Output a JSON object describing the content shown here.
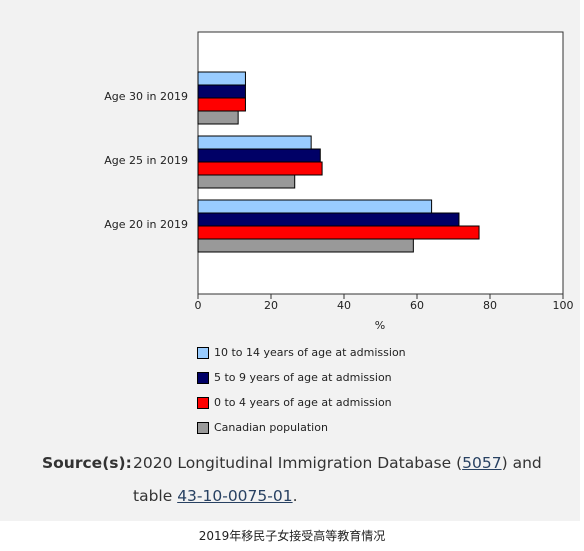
{
  "chart_data": {
    "type": "bar",
    "orientation": "horizontal",
    "categories": [
      "Age 30 in 2019",
      "Age 25 in 2019",
      "Age 20 in 2019"
    ],
    "series": [
      {
        "name": "10 to 14 years of age at admission",
        "color": "#99ccff",
        "values": [
          13,
          31,
          64
        ]
      },
      {
        "name": "5 to 9 years of age at admission",
        "color": "#000066",
        "values": [
          13,
          33.5,
          71.5
        ]
      },
      {
        "name": "0 to 4 years of age at admission",
        "color": "#ff0000",
        "values": [
          13,
          34,
          77
        ]
      },
      {
        "name": "Canadian population",
        "color": "#999999",
        "values": [
          11,
          26.5,
          59
        ]
      }
    ],
    "xlabel": "%",
    "xlim": [
      0,
      100
    ],
    "xticks": [
      "0",
      "20",
      "40",
      "60",
      "80",
      "100"
    ],
    "grid": false,
    "legend_position": "bottom"
  },
  "source": {
    "label": "Source(s):",
    "text_before": "2020 Longitudinal Immigration Database (",
    "link1": "5057",
    "text_middle": ") and",
    "text_table": "table ",
    "link2": "43-10-0075-01",
    "text_end": "."
  },
  "caption": "2019年移民子女接受高等教育情况"
}
